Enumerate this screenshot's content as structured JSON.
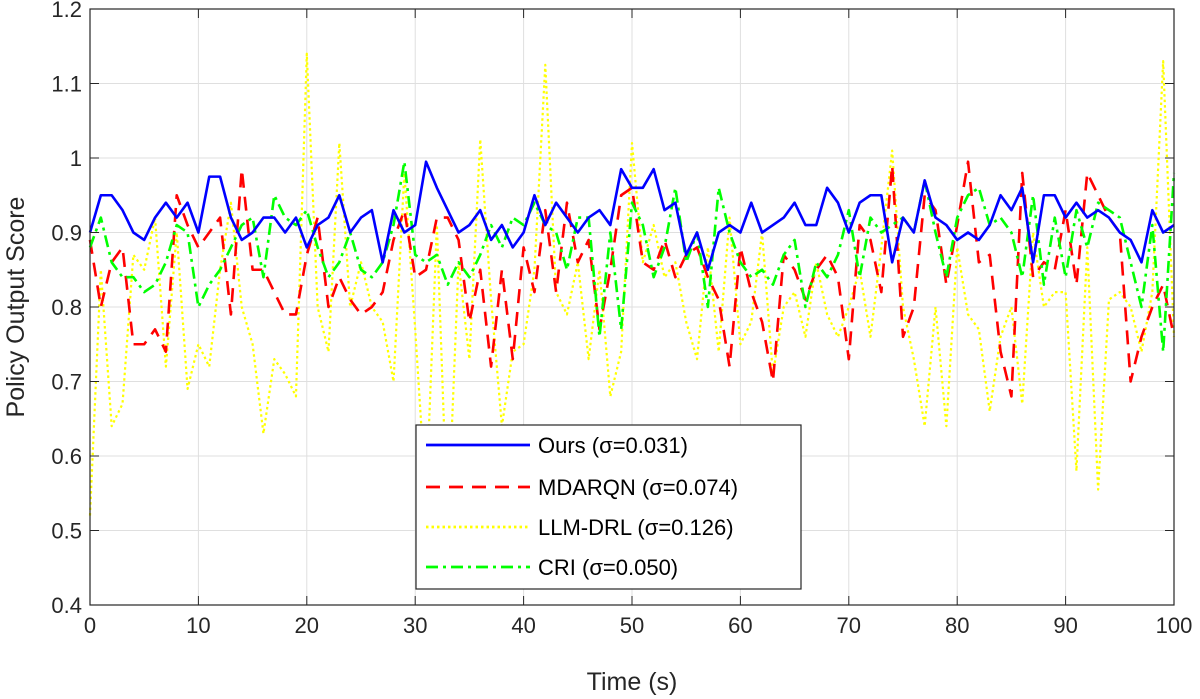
{
  "chart_data": {
    "type": "line",
    "title": "",
    "xlabel": "Time (s)",
    "ylabel": "Policy Output Score",
    "xlim": [
      0,
      100
    ],
    "ylim": [
      0.4,
      1.2
    ],
    "xticks": [
      0,
      10,
      20,
      30,
      40,
      50,
      60,
      70,
      80,
      90,
      100
    ],
    "yticks": [
      0.4,
      0.5,
      0.6,
      0.7,
      0.8,
      0.9,
      1,
      1.1,
      1.2
    ],
    "ytick_labels": [
      "0.4",
      "0.5",
      "0.6",
      "0.7",
      "0.8",
      "0.9",
      "1",
      "1.1",
      "1.2"
    ],
    "grid": true,
    "legend_position": "bottom-center",
    "series": [
      {
        "name": "Ours (σ=0.031)",
        "color": "#0000ff",
        "style": "solid",
        "values": [
          0.9,
          0.95,
          0.95,
          0.93,
          0.9,
          0.89,
          0.92,
          0.94,
          0.92,
          0.94,
          0.9,
          0.975,
          0.975,
          0.92,
          0.89,
          0.9,
          0.92,
          0.92,
          0.9,
          0.92,
          0.88,
          0.91,
          0.92,
          0.95,
          0.9,
          0.92,
          0.93,
          0.86,
          0.93,
          0.9,
          0.91,
          0.995,
          0.96,
          0.93,
          0.9,
          0.91,
          0.93,
          0.89,
          0.91,
          0.88,
          0.9,
          0.95,
          0.91,
          0.94,
          0.92,
          0.9,
          0.92,
          0.93,
          0.91,
          0.985,
          0.96,
          0.96,
          0.985,
          0.93,
          0.94,
          0.87,
          0.9,
          0.85,
          0.9,
          0.91,
          0.9,
          0.94,
          0.9,
          0.91,
          0.92,
          0.94,
          0.91,
          0.91,
          0.96,
          0.94,
          0.9,
          0.94,
          0.95,
          0.95,
          0.86,
          0.92,
          0.9,
          0.97,
          0.92,
          0.91,
          0.89,
          0.9,
          0.89,
          0.91,
          0.95,
          0.93,
          0.96,
          0.86,
          0.95,
          0.95,
          0.92,
          0.94,
          0.92,
          0.93,
          0.92,
          0.9,
          0.89,
          0.86,
          0.93,
          0.9,
          0.91
        ]
      },
      {
        "name": "MDARQN (σ=0.074)",
        "color": "#ff0000",
        "style": "dashed",
        "values": [
          0.89,
          0.8,
          0.86,
          0.88,
          0.75,
          0.75,
          0.77,
          0.74,
          0.95,
          0.91,
          0.88,
          0.9,
          0.92,
          0.79,
          0.985,
          0.85,
          0.85,
          0.82,
          0.79,
          0.79,
          0.87,
          0.92,
          0.8,
          0.84,
          0.81,
          0.79,
          0.8,
          0.82,
          0.89,
          0.93,
          0.84,
          0.85,
          0.92,
          0.92,
          0.89,
          0.78,
          0.85,
          0.72,
          0.85,
          0.73,
          0.88,
          0.82,
          0.93,
          0.82,
          0.94,
          0.86,
          0.89,
          0.77,
          0.85,
          0.95,
          0.96,
          0.86,
          0.85,
          0.89,
          0.84,
          0.87,
          0.88,
          0.84,
          0.81,
          0.72,
          0.88,
          0.82,
          0.78,
          0.7,
          0.87,
          0.85,
          0.81,
          0.85,
          0.87,
          0.84,
          0.73,
          0.91,
          0.89,
          0.82,
          0.99,
          0.76,
          0.8,
          0.95,
          0.93,
          0.83,
          0.91,
          0.995,
          0.86,
          0.87,
          0.74,
          0.68,
          0.98,
          0.84,
          0.86,
          0.85,
          0.93,
          0.83,
          0.98,
          0.95,
          0.92,
          0.9,
          0.7,
          0.76,
          0.8,
          0.83,
          0.76
        ]
      },
      {
        "name": "LLM-DRL (σ=0.126)",
        "color": "#ffff00",
        "style": "dotted",
        "values": [
          0.52,
          0.85,
          0.64,
          0.67,
          0.87,
          0.85,
          0.92,
          0.72,
          0.9,
          0.69,
          0.75,
          0.72,
          0.85,
          0.94,
          0.8,
          0.75,
          0.63,
          0.73,
          0.71,
          0.68,
          1.14,
          0.8,
          0.74,
          1.02,
          0.8,
          0.86,
          0.8,
          0.78,
          0.7,
          0.98,
          0.77,
          0.54,
          0.91,
          0.5,
          0.86,
          0.73,
          1.025,
          0.81,
          0.64,
          0.74,
          0.75,
          0.85,
          1.125,
          0.82,
          0.79,
          0.86,
          0.73,
          0.85,
          0.68,
          0.74,
          1.02,
          0.86,
          0.91,
          0.84,
          0.86,
          0.78,
          0.73,
          0.88,
          0.74,
          0.92,
          0.75,
          0.78,
          0.9,
          0.71,
          0.8,
          0.82,
          0.76,
          0.86,
          0.79,
          0.76,
          0.8,
          0.85,
          0.76,
          0.88,
          1.01,
          0.8,
          0.73,
          0.64,
          0.8,
          0.64,
          0.88,
          0.79,
          0.77,
          0.66,
          0.76,
          0.8,
          0.67,
          0.9,
          0.8,
          0.82,
          0.82,
          0.58,
          0.88,
          0.555,
          0.81,
          0.82,
          0.8,
          0.74,
          0.82,
          1.13,
          0.76
        ]
      },
      {
        "name": "CRI (σ=0.050)",
        "color": "#00ff00",
        "style": "dashdot",
        "values": [
          0.88,
          0.92,
          0.86,
          0.84,
          0.84,
          0.82,
          0.83,
          0.86,
          0.91,
          0.9,
          0.8,
          0.83,
          0.85,
          0.88,
          0.91,
          0.92,
          0.84,
          0.95,
          0.92,
          0.91,
          0.93,
          0.88,
          0.84,
          0.86,
          0.9,
          0.85,
          0.84,
          0.86,
          0.91,
          0.995,
          0.87,
          0.86,
          0.87,
          0.83,
          0.86,
          0.84,
          0.87,
          0.91,
          0.88,
          0.92,
          0.91,
          0.94,
          0.91,
          0.9,
          0.85,
          0.92,
          0.92,
          0.76,
          0.9,
          0.77,
          0.94,
          0.91,
          0.84,
          0.88,
          0.96,
          0.86,
          0.9,
          0.8,
          0.96,
          0.9,
          0.86,
          0.84,
          0.85,
          0.83,
          0.87,
          0.89,
          0.8,
          0.86,
          0.84,
          0.87,
          0.93,
          0.84,
          0.92,
          0.9,
          0.91,
          0.92,
          0.9,
          0.97,
          0.9,
          0.84,
          0.92,
          0.95,
          0.96,
          0.91,
          0.92,
          0.9,
          0.84,
          0.95,
          0.83,
          0.92,
          0.84,
          0.93,
          0.88,
          0.94,
          0.93,
          0.92,
          0.86,
          0.8,
          0.91,
          0.74,
          0.98
        ]
      }
    ]
  }
}
